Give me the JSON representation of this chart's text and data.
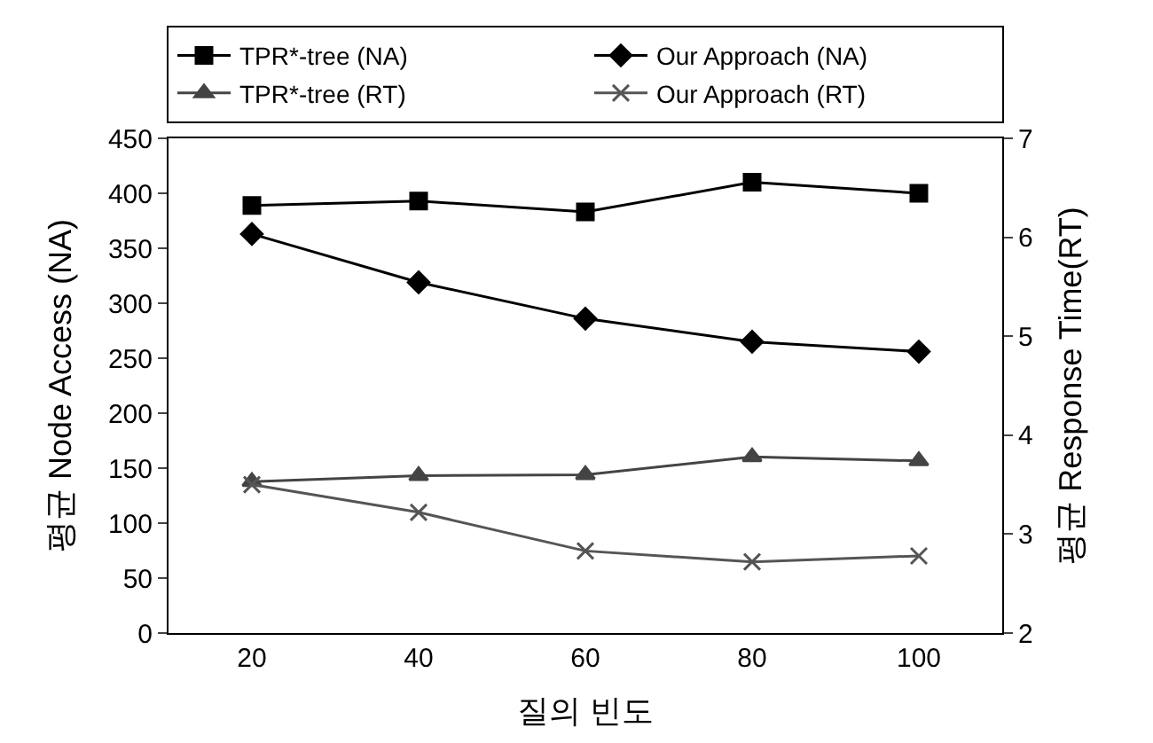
{
  "chart_data": {
    "type": "line",
    "xlabel": "질의 빈도",
    "ylabel": "평균 Node Access (NA)",
    "y2label": "평균 Response Time(RT)",
    "categories": [
      "20",
      "40",
      "60",
      "80",
      "100"
    ],
    "series": [
      {
        "name": "TPR*-tree (NA)",
        "color": "#000000",
        "marker": "square",
        "values": [
          389,
          393,
          383,
          410,
          400
        ]
      },
      {
        "name": "Our Approach (NA)",
        "color": "#000000",
        "marker": "diamond",
        "values": [
          363,
          319,
          286,
          265,
          256
        ]
      },
      {
        "name": "TPR*-tree (RT)",
        "color": "#444444",
        "marker": "triangle",
        "axis": "y2",
        "values": [
          3.53,
          3.59,
          3.6,
          3.78,
          3.74
        ]
      },
      {
        "name": "Our Approach (RT)",
        "color": "#555555",
        "marker": "cross",
        "axis": "y2",
        "values": [
          3.5,
          3.22,
          2.83,
          2.72,
          2.78
        ]
      }
    ],
    "ylim": [
      0,
      450
    ],
    "yticks": [
      0,
      50,
      100,
      150,
      200,
      250,
      300,
      350,
      400,
      450
    ],
    "y2lim": [
      2,
      7
    ],
    "y2ticks": [
      2,
      3,
      4,
      5,
      6,
      7
    ],
    "grid": false,
    "legend": "top"
  }
}
